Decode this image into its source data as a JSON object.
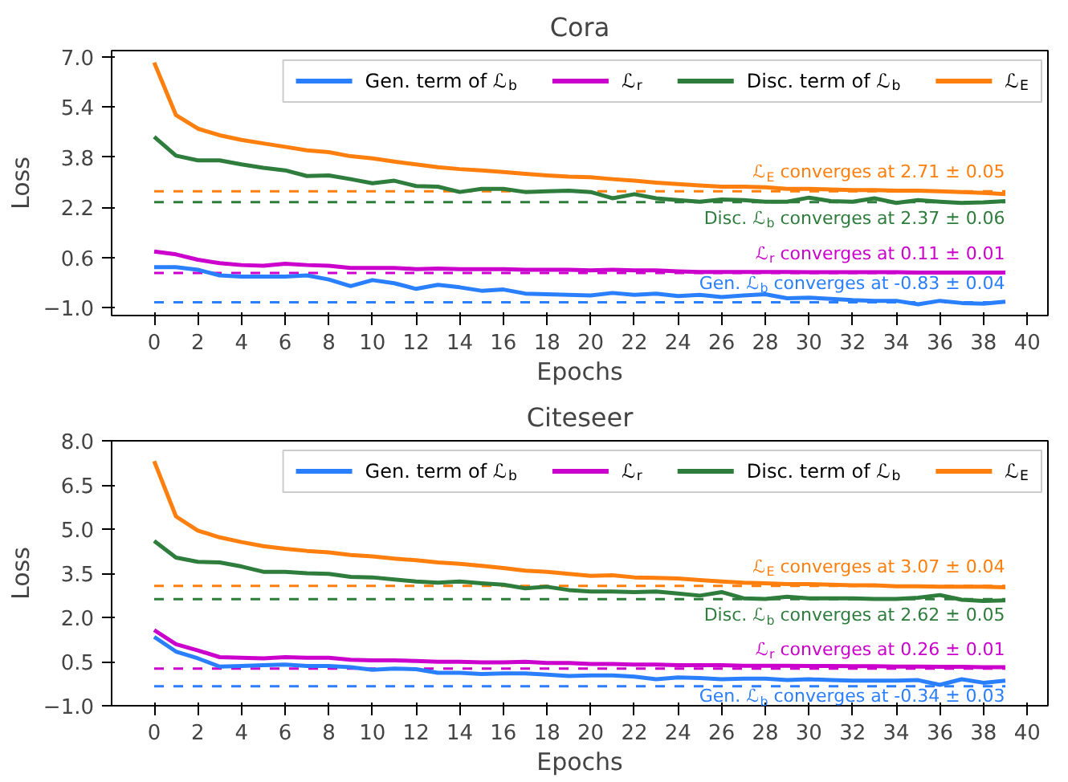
{
  "chart_data": [
    {
      "type": "line",
      "title": "Cora",
      "xlabel": "Epochs",
      "ylabel": "Loss",
      "legend": "top right",
      "line_style": "solid",
      "grid": false,
      "x": [
        0,
        1,
        2,
        3,
        4,
        5,
        6,
        7,
        8,
        9,
        10,
        11,
        12,
        13,
        14,
        15,
        16,
        17,
        18,
        19,
        20,
        21,
        22,
        23,
        24,
        25,
        26,
        27,
        28,
        29,
        30,
        31,
        32,
        33,
        34,
        35,
        36,
        37,
        38,
        39
      ],
      "xlim": [
        -1.95,
        40.95
      ],
      "xticks": [
        0,
        2,
        4,
        6,
        8,
        10,
        12,
        14,
        16,
        18,
        20,
        22,
        24,
        26,
        28,
        30,
        32,
        34,
        36,
        38,
        40
      ],
      "ylim": [
        -1.25,
        7.2
      ],
      "yticks": [
        {
          "value": -1.0,
          "label": "−1.0"
        },
        {
          "value": 0.6,
          "label": "0.6"
        },
        {
          "value": 2.2,
          "label": "2.2"
        },
        {
          "value": 3.8,
          "label": "3.8"
        },
        {
          "value": 5.4,
          "label": "5.4"
        },
        {
          "value": 7.0,
          "label": "7.0"
        }
      ],
      "series": [
        {
          "name": "Gen. term of ℒ$_{b}$",
          "color": "#2a7fff",
          "values": [
            0.29,
            0.29,
            0.21,
            0.03,
            -0.01,
            -0.01,
            -0.01,
            0.03,
            -0.1,
            -0.31,
            -0.12,
            -0.22,
            -0.4,
            -0.27,
            -0.35,
            -0.46,
            -0.42,
            -0.55,
            -0.57,
            -0.59,
            -0.61,
            -0.53,
            -0.59,
            -0.55,
            -0.63,
            -0.59,
            -0.66,
            -0.61,
            -0.57,
            -0.7,
            -0.68,
            -0.72,
            -0.76,
            -0.78,
            -0.78,
            -0.89,
            -0.78,
            -0.85,
            -0.87,
            -0.81
          ]
        },
        {
          "name": "ℒ$_{r}$",
          "color": "#cc00cc",
          "values": [
            0.79,
            0.7,
            0.53,
            0.42,
            0.36,
            0.34,
            0.4,
            0.36,
            0.34,
            0.27,
            0.27,
            0.27,
            0.23,
            0.25,
            0.23,
            0.23,
            0.23,
            0.21,
            0.21,
            0.21,
            0.19,
            0.21,
            0.19,
            0.19,
            0.16,
            0.14,
            0.14,
            0.14,
            0.14,
            0.14,
            0.13,
            0.13,
            0.13,
            0.13,
            0.13,
            0.12,
            0.12,
            0.12,
            0.12,
            0.12
          ]
        },
        {
          "name": "Disc. term of ℒ$_{b}$",
          "color": "#2e7d3c",
          "values": [
            4.45,
            3.85,
            3.7,
            3.7,
            3.57,
            3.46,
            3.38,
            3.2,
            3.22,
            3.1,
            2.97,
            3.05,
            2.88,
            2.86,
            2.69,
            2.79,
            2.79,
            2.69,
            2.71,
            2.73,
            2.69,
            2.49,
            2.62,
            2.49,
            2.43,
            2.38,
            2.45,
            2.43,
            2.38,
            2.38,
            2.51,
            2.4,
            2.38,
            2.49,
            2.34,
            2.43,
            2.38,
            2.34,
            2.36,
            2.4
          ]
        },
        {
          "name": "ℒ$_{E}$",
          "color": "#ff7f0e",
          "values": [
            6.82,
            5.14,
            4.71,
            4.5,
            4.35,
            4.24,
            4.13,
            4.02,
            3.96,
            3.83,
            3.76,
            3.66,
            3.57,
            3.48,
            3.42,
            3.38,
            3.33,
            3.27,
            3.22,
            3.18,
            3.16,
            3.1,
            3.05,
            2.99,
            2.94,
            2.9,
            2.86,
            2.86,
            2.84,
            2.79,
            2.79,
            2.77,
            2.75,
            2.75,
            2.73,
            2.73,
            2.71,
            2.69,
            2.66,
            2.62
          ]
        }
      ],
      "ref_lines": [
        {
          "axis": "y",
          "value": 2.71,
          "color": "#ff7f0e",
          "line_style": "dashed"
        },
        {
          "axis": "y",
          "value": 2.37,
          "color": "#2e7d3c",
          "line_style": "dashed"
        },
        {
          "axis": "y",
          "value": 0.11,
          "color": "#cc00cc",
          "line_style": "dashed"
        },
        {
          "axis": "y",
          "value": -0.83,
          "color": "#2a7fff",
          "line_style": "dashed"
        }
      ],
      "annotations": [
        "ℒ$_{E}$ converges at 2.71 ± 0.05",
        "Disc. ℒ$_{b}$ converges at 2.37 ± 0.06",
        "ℒ$_{r}$ converges at 0.11 ± 0.01",
        "Gen. ℒ$_{b}$ converges at -0.83 ± 0.04"
      ]
    },
    {
      "type": "line",
      "title": "Citeseer",
      "xlabel": "Epochs",
      "ylabel": "Loss",
      "legend": "top right",
      "line_style": "solid",
      "grid": false,
      "x": [
        0,
        1,
        2,
        3,
        4,
        5,
        6,
        7,
        8,
        9,
        10,
        11,
        12,
        13,
        14,
        15,
        16,
        17,
        18,
        19,
        20,
        21,
        22,
        23,
        24,
        25,
        26,
        27,
        28,
        29,
        30,
        31,
        32,
        33,
        34,
        35,
        36,
        37,
        38,
        39
      ],
      "xlim": [
        -1.95,
        40.95
      ],
      "xticks": [
        0,
        2,
        4,
        6,
        8,
        10,
        12,
        14,
        16,
        18,
        20,
        22,
        24,
        26,
        28,
        30,
        32,
        34,
        36,
        38,
        40
      ],
      "ylim": [
        -1.0,
        8.0
      ],
      "yticks": [
        {
          "value": -1.0,
          "label": "−1.0"
        },
        {
          "value": 0.5,
          "label": "0.5"
        },
        {
          "value": 2.0,
          "label": "2.0"
        },
        {
          "value": 3.5,
          "label": "3.5"
        },
        {
          "value": 5.0,
          "label": "5.0"
        },
        {
          "value": 6.5,
          "label": "6.5"
        },
        {
          "value": 8.0,
          "label": "8.0"
        }
      ],
      "series": [
        {
          "name": "Gen. term of ℒ$_{b}$",
          "color": "#2a7fff",
          "values": [
            1.34,
            0.84,
            0.61,
            0.33,
            0.35,
            0.38,
            0.4,
            0.35,
            0.35,
            0.31,
            0.22,
            0.26,
            0.24,
            0.12,
            0.12,
            0.08,
            0.1,
            0.1,
            0.06,
            0.01,
            0.03,
            0.03,
            -0.01,
            -0.1,
            -0.04,
            -0.06,
            -0.1,
            -0.08,
            -0.08,
            -0.13,
            -0.1,
            -0.13,
            -0.15,
            -0.15,
            -0.15,
            -0.13,
            -0.29,
            -0.1,
            -0.22,
            -0.15
          ]
        },
        {
          "name": "ℒ$_{r}$",
          "color": "#cc00cc",
          "values": [
            1.57,
            1.09,
            0.88,
            0.65,
            0.63,
            0.61,
            0.65,
            0.63,
            0.63,
            0.56,
            0.54,
            0.54,
            0.52,
            0.49,
            0.49,
            0.47,
            0.47,
            0.49,
            0.45,
            0.45,
            0.42,
            0.42,
            0.4,
            0.4,
            0.38,
            0.38,
            0.38,
            0.36,
            0.36,
            0.36,
            0.35,
            0.35,
            0.34,
            0.34,
            0.33,
            0.33,
            0.32,
            0.32,
            0.31,
            0.31
          ]
        },
        {
          "name": "Disc. term of ℒ$_{b}$",
          "color": "#2e7d3c",
          "values": [
            4.6,
            4.03,
            3.89,
            3.87,
            3.73,
            3.55,
            3.55,
            3.5,
            3.48,
            3.38,
            3.36,
            3.29,
            3.22,
            3.18,
            3.22,
            3.16,
            3.11,
            2.99,
            3.04,
            2.93,
            2.88,
            2.88,
            2.86,
            2.88,
            2.81,
            2.74,
            2.86,
            2.65,
            2.63,
            2.7,
            2.65,
            2.65,
            2.65,
            2.63,
            2.63,
            2.67,
            2.76,
            2.6,
            2.56,
            2.58
          ]
        },
        {
          "name": "ℒ$_{E}$",
          "color": "#ff7f0e",
          "values": [
            7.31,
            5.43,
            4.95,
            4.72,
            4.56,
            4.42,
            4.33,
            4.26,
            4.21,
            4.12,
            4.07,
            4.0,
            3.94,
            3.87,
            3.82,
            3.75,
            3.68,
            3.59,
            3.55,
            3.48,
            3.41,
            3.43,
            3.36,
            3.34,
            3.32,
            3.27,
            3.22,
            3.18,
            3.16,
            3.13,
            3.13,
            3.11,
            3.09,
            3.09,
            3.06,
            3.06,
            3.04,
            3.04,
            3.04,
            3.02
          ]
        }
      ],
      "ref_lines": [
        {
          "axis": "y",
          "value": 3.07,
          "color": "#ff7f0e",
          "line_style": "dashed"
        },
        {
          "axis": "y",
          "value": 2.62,
          "color": "#2e7d3c",
          "line_style": "dashed"
        },
        {
          "axis": "y",
          "value": 0.26,
          "color": "#cc00cc",
          "line_style": "dashed"
        },
        {
          "axis": "y",
          "value": -0.34,
          "color": "#2a7fff",
          "line_style": "dashed"
        }
      ],
      "annotations": [
        "ℒ$_{E}$ converges at 3.07 ± 0.04",
        "Disc. ℒ$_{b}$ converges at 2.62 ± 0.05",
        "ℒ$_{r}$ converges at 0.26 ± 0.01",
        "Gen. ℒ$_{b}$ converges at -0.34 ± 0.03"
      ]
    }
  ]
}
